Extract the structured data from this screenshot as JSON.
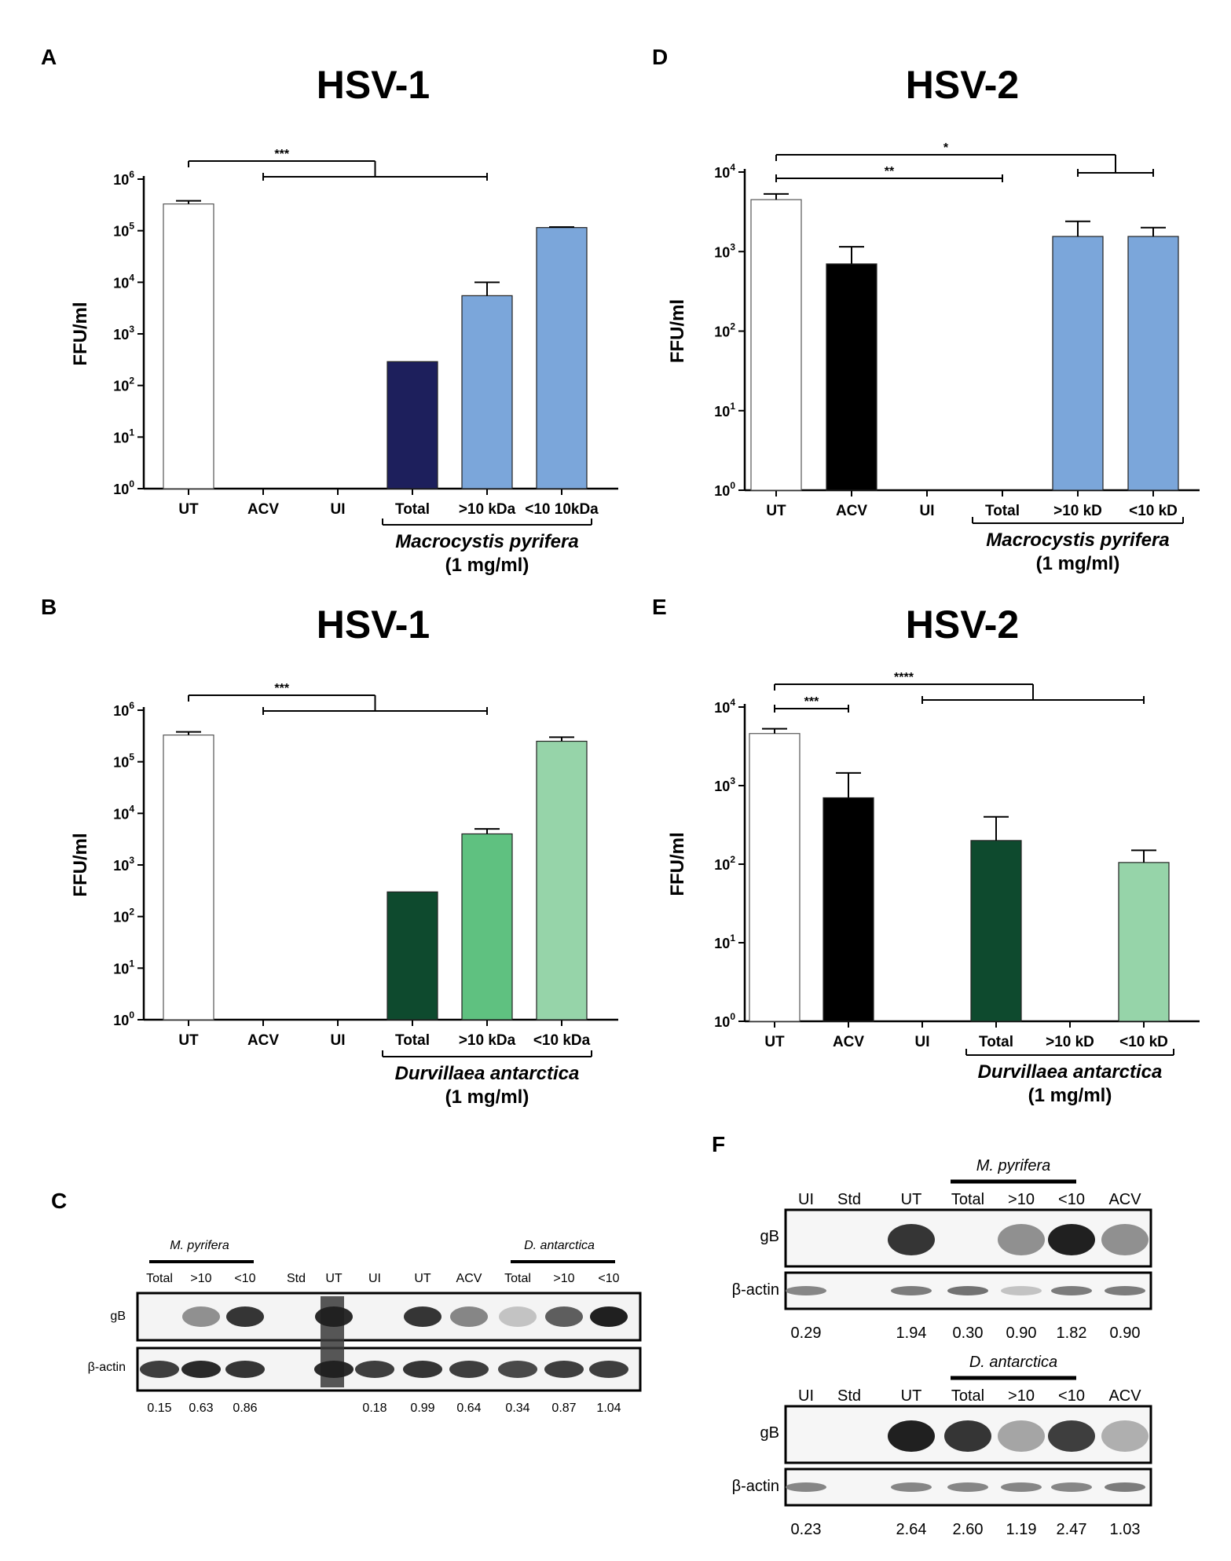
{
  "chart_data": [
    {
      "panel": "A",
      "type": "bar",
      "title": "HSV-1",
      "ylabel": "FFU/ml",
      "yscale": "log",
      "ylim": [
        1,
        1000000
      ],
      "yticks": [
        "10^0",
        "10^1",
        "10^2",
        "10^3",
        "10^4",
        "10^5",
        "10^6"
      ],
      "categories": [
        "UT",
        "ACV",
        "UI",
        "Total",
        ">10 kDa",
        "<10 10kDa"
      ],
      "values": [
        330000,
        null,
        null,
        290,
        5500,
        115000
      ],
      "error": [
        380000,
        null,
        null,
        null,
        10000,
        118000
      ],
      "colors": [
        "#ffffff",
        "#000000",
        "#ffffff",
        "#1d1f5c",
        "#7ba6da",
        "#7ba6da"
      ],
      "group_label": "Macrocystis pyrifera",
      "group_conc": "(1 mg/ml)",
      "group_span": [
        3,
        5
      ],
      "significance": [
        {
          "label": "***",
          "from": [
            0
          ],
          "to": [
            1,
            4
          ]
        }
      ]
    },
    {
      "panel": "B",
      "type": "bar",
      "title": "HSV-1",
      "ylabel": "FFU/ml",
      "yscale": "log",
      "ylim": [
        1,
        1000000
      ],
      "yticks": [
        "10^0",
        "10^1",
        "10^2",
        "10^3",
        "10^4",
        "10^5",
        "10^6"
      ],
      "categories": [
        "UT",
        "ACV",
        "UI",
        "Total",
        ">10 kDa",
        "<10 kDa"
      ],
      "values": [
        330000,
        null,
        null,
        300,
        4000,
        250000
      ],
      "error": [
        380000,
        null,
        null,
        null,
        5000,
        300000
      ],
      "colors": [
        "#ffffff",
        "#000000",
        "#ffffff",
        "#0e4a2e",
        "#5fc180",
        "#96d4a9"
      ],
      "group_label": "Durvillaea antarctica",
      "group_conc": "(1 mg/ml)",
      "group_span": [
        3,
        5
      ],
      "significance": [
        {
          "label": "***",
          "from": [
            0
          ],
          "to": [
            1,
            4
          ]
        }
      ]
    },
    {
      "panel": "D",
      "type": "bar",
      "title": "HSV-2",
      "ylabel": "FFU/ml",
      "yscale": "log",
      "ylim": [
        1,
        10000
      ],
      "yticks": [
        "10^0",
        "10^1",
        "10^2",
        "10^3",
        "10^4"
      ],
      "categories": [
        "UT",
        "ACV",
        "UI",
        "Total",
        ">10 kD",
        "<10 kD"
      ],
      "values": [
        4500,
        700,
        null,
        null,
        1550,
        1550
      ],
      "error": [
        5300,
        1150,
        null,
        null,
        2400,
        2000
      ],
      "colors": [
        "#ffffff",
        "#000000",
        "#ffffff",
        "#1d1f5c",
        "#7ba6da",
        "#7ba6da"
      ],
      "group_label": "Macrocystis pyrifera",
      "group_conc": "(1 mg/ml)",
      "group_span": [
        3,
        5
      ],
      "significance": [
        {
          "label": "*",
          "from": [
            0
          ],
          "to": [
            4,
            5
          ]
        },
        {
          "label": "**",
          "from": [
            0
          ],
          "to": [
            3
          ]
        }
      ]
    },
    {
      "panel": "E",
      "type": "bar",
      "title": "HSV-2",
      "ylabel": "FFU/ml",
      "yscale": "log",
      "ylim": [
        1,
        10000
      ],
      "yticks": [
        "10^0",
        "10^1",
        "10^2",
        "10^3",
        "10^4"
      ],
      "categories": [
        "UT",
        "ACV",
        "UI",
        "Total",
        ">10 kD",
        "<10 kD"
      ],
      "values": [
        4600,
        700,
        null,
        200,
        null,
        105
      ],
      "error": [
        5300,
        1450,
        null,
        400,
        null,
        150
      ],
      "colors": [
        "#ffffff",
        "#000000",
        "#ffffff",
        "#0e4a2e",
        "#5fc180",
        "#96d4a9"
      ],
      "group_label": "Durvillaea antarctica",
      "group_conc": "(1 mg/ml)",
      "group_span": [
        3,
        5
      ],
      "significance": [
        {
          "label": "****",
          "from": [
            0
          ],
          "to": [
            2,
            5
          ]
        },
        {
          "label": "***",
          "from": [
            0
          ],
          "to": [
            1
          ]
        }
      ]
    },
    {
      "panel": "C",
      "type": "table",
      "group_left": "M. pyrifera",
      "group_right": "D. antarctica",
      "lanes": [
        "Total",
        ">10",
        "<10",
        "Std",
        "UT",
        "UI",
        "UT",
        "ACV",
        "Total",
        ">10",
        "<10"
      ],
      "rows": [
        "gB",
        "β-actin"
      ],
      "ratios": [
        "0.15",
        "0.63",
        "0.86",
        "",
        "",
        "0.18",
        "0.99",
        "0.64",
        "0.34",
        "0.87",
        "1.04"
      ],
      "gB_intensity": [
        0.0,
        0.45,
        0.9,
        0.0,
        0.95,
        0.0,
        0.9,
        0.5,
        0.2,
        0.7,
        1.0
      ],
      "actin_intensity": [
        0.85,
        0.95,
        0.9,
        0.0,
        0.95,
        0.85,
        0.9,
        0.85,
        0.8,
        0.85,
        0.85
      ]
    },
    {
      "panel": "F",
      "type": "table",
      "blots": [
        {
          "group": "M. pyrifera",
          "lanes": [
            "UI",
            "Std",
            "UT",
            "Total",
            ">10",
            "<10",
            "ACV"
          ],
          "rows": [
            "gB",
            "β-actin"
          ],
          "ratios": [
            "0.29",
            "",
            "1.94",
            "0.30",
            "0.90",
            "1.82",
            "0.90"
          ],
          "gB_intensity": [
            0.0,
            0.0,
            0.9,
            0.0,
            0.45,
            1.0,
            0.45
          ],
          "actin_intensity": [
            0.5,
            0.0,
            0.55,
            0.6,
            0.2,
            0.55,
            0.55
          ]
        },
        {
          "group": "D. antarctica",
          "lanes": [
            "UI",
            "Std",
            "UT",
            "Total",
            ">10",
            "<10",
            "ACV"
          ],
          "rows": [
            "gB",
            "β-actin"
          ],
          "ratios": [
            "0.23",
            "",
            "2.64",
            "2.60",
            "1.19",
            "2.47",
            "1.03"
          ],
          "gB_intensity": [
            0.0,
            0.0,
            1.0,
            0.9,
            0.35,
            0.85,
            0.3
          ],
          "actin_intensity": [
            0.5,
            0.0,
            0.5,
            0.5,
            0.5,
            0.5,
            0.55
          ]
        }
      ]
    }
  ]
}
